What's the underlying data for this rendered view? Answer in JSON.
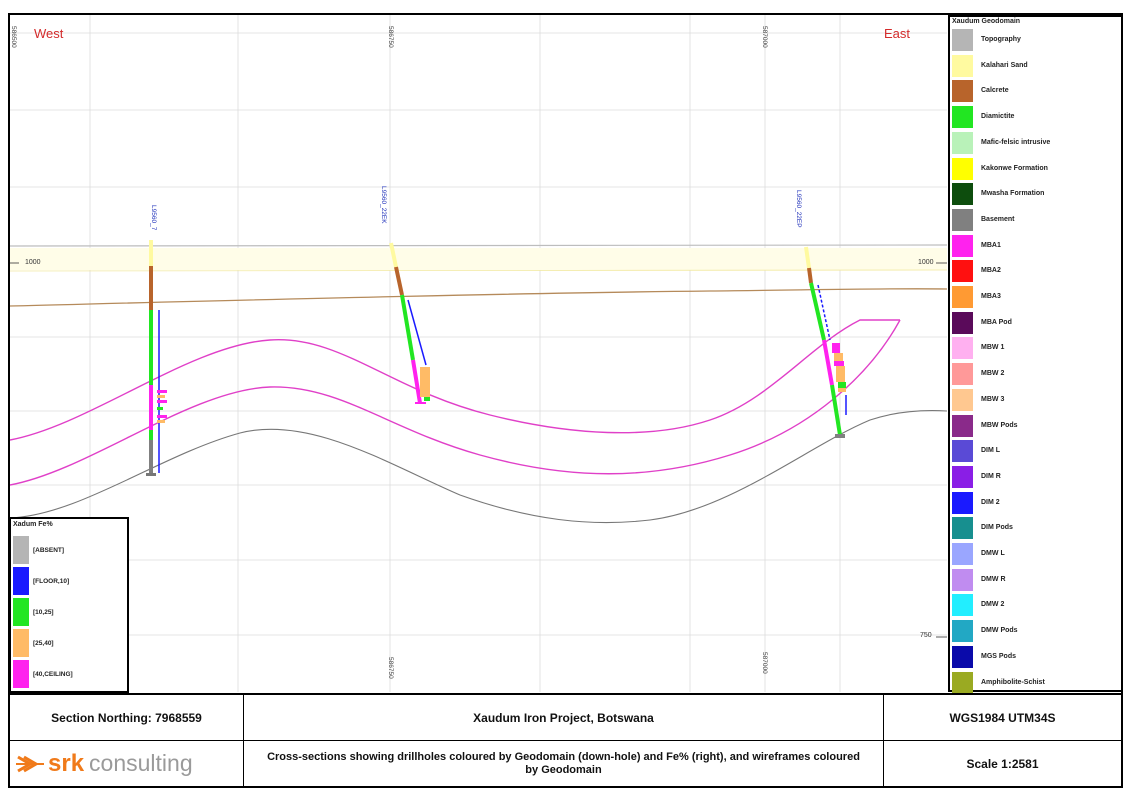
{
  "section": {
    "west_label": "West",
    "east_label": "East",
    "easting_top": [
      "586500",
      "586750",
      "587000"
    ],
    "easting_bottom": [
      "586750",
      "587000"
    ],
    "elevation_left": [
      "1000"
    ],
    "elevation_right": [
      "1000",
      "750"
    ],
    "drillholes": [
      {
        "name": "L9560_7"
      },
      {
        "name": "L9560_22EK"
      },
      {
        "name": "L9560_22EP"
      }
    ]
  },
  "geodomain_legend": {
    "title": "Xaudum Geodomain",
    "items": [
      {
        "label": "Topography",
        "color": "#b5b5b5"
      },
      {
        "label": "Kalahari Sand",
        "color": "#fffaa0"
      },
      {
        "label": "Calcrete",
        "color": "#b8642b"
      },
      {
        "label": "Diamictite",
        "color": "#22e622"
      },
      {
        "label": "Mafic-felsic intrusive",
        "color": "#b9f2b9"
      },
      {
        "label": "Kakonwe Formation",
        "color": "#ffff00"
      },
      {
        "label": "Mwasha Formation",
        "color": "#0d4d0d"
      },
      {
        "label": "Basement",
        "color": "#808080"
      },
      {
        "label": "MBA1",
        "color": "#ff22ee"
      },
      {
        "label": "MBA2",
        "color": "#ff1010"
      },
      {
        "label": "MBA3",
        "color": "#ff9a33"
      },
      {
        "label": "MBA Pod",
        "color": "#5a0a5a"
      },
      {
        "label": "MBW 1",
        "color": "#ffb0f0"
      },
      {
        "label": "MBW 2",
        "color": "#ff9999"
      },
      {
        "label": "MBW 3",
        "color": "#ffc890"
      },
      {
        "label": "MBW Pods",
        "color": "#8a2a8a"
      },
      {
        "label": "DIM L",
        "color": "#5a4ad6"
      },
      {
        "label": "DIM R",
        "color": "#8a1ee6"
      },
      {
        "label": "DIM 2",
        "color": "#1a1aff"
      },
      {
        "label": "DIM Pods",
        "color": "#178f8f"
      },
      {
        "label": "DMW L",
        "color": "#9aa6ff"
      },
      {
        "label": "DMW R",
        "color": "#c08cf0"
      },
      {
        "label": "DMW 2",
        "color": "#22eeff"
      },
      {
        "label": "DMW Pods",
        "color": "#22a8c4"
      },
      {
        "label": "MGS Pods",
        "color": "#0a0aaa"
      },
      {
        "label": "Amphibolite-Schist",
        "color": "#9aaa22"
      }
    ]
  },
  "fe_legend": {
    "title": "Xadum Fe%",
    "items": [
      {
        "label": "[ABSENT]",
        "color": "#b5b5b5"
      },
      {
        "label": "[FLOOR,10]",
        "color": "#1a1aff"
      },
      {
        "label": "[10,25]",
        "color": "#22e622"
      },
      {
        "label": "[25,40]",
        "color": "#ffbb66"
      },
      {
        "label": "[40,CEILING]",
        "color": "#ff22ee"
      }
    ]
  },
  "title_block": {
    "section_northing": "Section Northing: 7968559",
    "project": "Xaudum Iron Project, Botswana",
    "crs": "WGS1984 UTM34S",
    "logo_word": "srk",
    "logo_suffix": "consulting",
    "description": "Cross-sections showing drillholes coloured by Geodomain (down-hole) and Fe% (right), and wireframes coloured by Geodomain",
    "scale": "Scale 1:2581"
  }
}
